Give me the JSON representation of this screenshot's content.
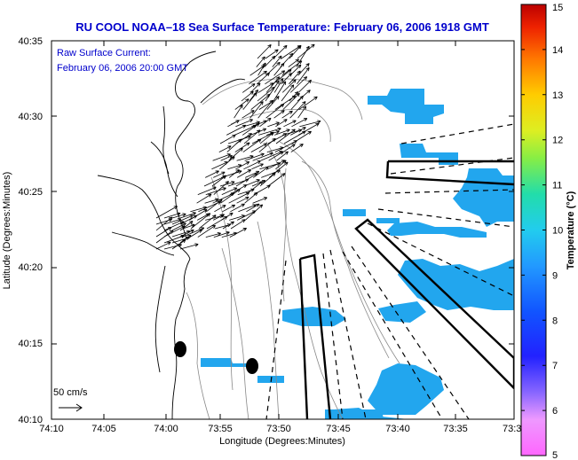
{
  "title": "RU COOL  NOAA–18  Sea Surface Temperature:  February 06, 2006 1918 GMT",
  "annotation": {
    "line1": "Raw Surface Current:",
    "line2": "February 06, 2006 20:00 GMT"
  },
  "axes": {
    "xlabel": "Longitude (Degrees:Minutes)",
    "ylabel": "Latitude (Degrees:Minutes)",
    "x_ticks": [
      "74:10",
      "74:05",
      "74:00",
      "73:55",
      "73:50",
      "73:45",
      "73:40",
      "73:35",
      "73:3"
    ],
    "y_ticks": [
      "40:35",
      "40:30",
      "40:25",
      "40:20",
      "40:15",
      "40:10"
    ]
  },
  "scale_label": "50 cm/s",
  "colorbar": {
    "label": "Temperature (°C)",
    "ticks": [
      "15",
      "14",
      "13",
      "12",
      "11",
      "10",
      "9",
      "8",
      "7",
      "6",
      "5"
    ],
    "min": 5,
    "max": 15
  },
  "colors": {
    "title": "#0000cc",
    "sst_patch": "#22a6ee",
    "sst_patch_light": "#3cc0f5"
  }
}
